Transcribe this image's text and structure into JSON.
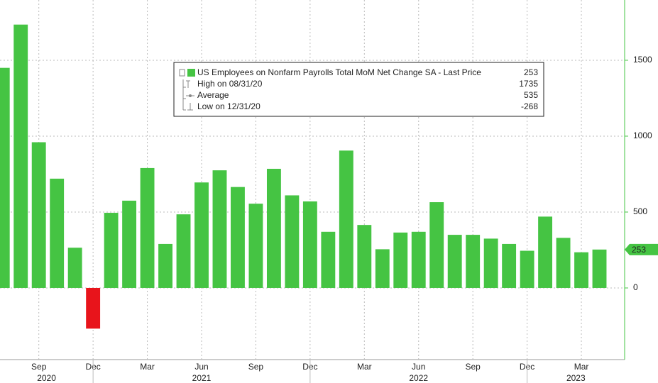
{
  "chart_data": {
    "type": "bar",
    "categories": [
      null,
      null,
      "Sep",
      null,
      null,
      "Dec",
      null,
      null,
      "Mar",
      null,
      null,
      "Jun",
      null,
      null,
      "Sep",
      null,
      null,
      "Dec",
      null,
      null,
      "Mar",
      null,
      null,
      "Jun",
      null,
      null,
      "Sep",
      null,
      null,
      "Dec",
      null,
      null,
      "Mar",
      null
    ],
    "category_years": [
      "2020",
      "2020",
      "2020",
      "2020",
      "2020",
      "2020",
      "2021",
      "2021",
      "2021",
      "2021",
      "2021",
      "2021",
      "2021",
      "2021",
      "2021",
      "2021",
      "2021",
      "2021",
      "2022",
      "2022",
      "2022",
      "2022",
      "2022",
      "2022",
      "2022",
      "2022",
      "2022",
      "2022",
      "2022",
      "2022",
      "2023",
      "2023",
      "2023",
      "2023"
    ],
    "values": [
      1450,
      1735,
      960,
      720,
      265,
      -268,
      495,
      575,
      790,
      290,
      485,
      695,
      775,
      665,
      555,
      785,
      610,
      570,
      370,
      905,
      415,
      255,
      365,
      370,
      565,
      350,
      350,
      325,
      290,
      245,
      470,
      330,
      235,
      253
    ],
    "color": "#45c443",
    "negative_color": "#e8141b",
    "ylim": [
      -472,
      1897
    ],
    "yticks": [
      0,
      500,
      1000,
      1500
    ],
    "grid": true,
    "legend": {
      "title": "US Employees on Nonfarm Payrolls Total MoM Net Change SA - Last Price",
      "last": 253,
      "rows": [
        {
          "label": "High on 08/31/20",
          "value": 1735
        },
        {
          "label": "Average",
          "value": 535
        },
        {
          "label": "Low on 12/31/20",
          "value": -268
        }
      ]
    }
  }
}
